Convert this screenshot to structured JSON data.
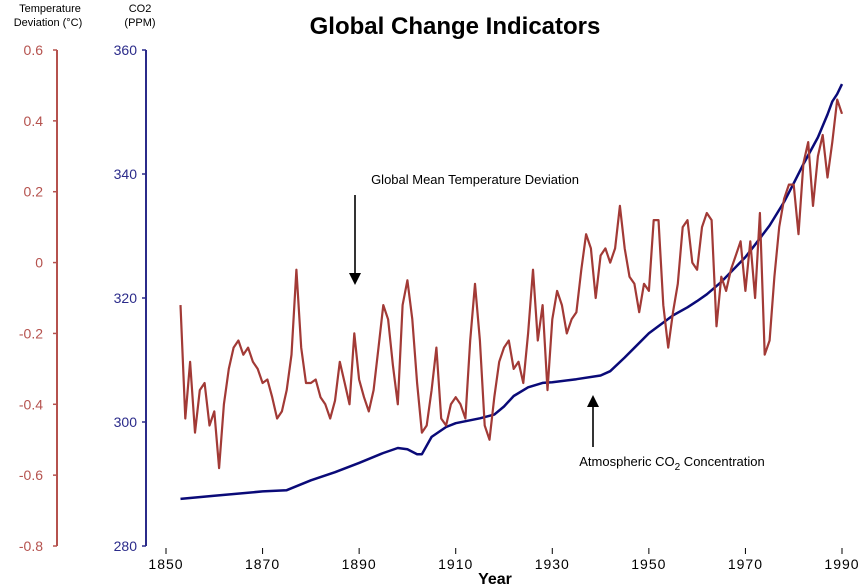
{
  "chart_data": {
    "type": "line",
    "title": "Global Change Indicators",
    "xlabel": "Year",
    "x_ticks": [
      "1850",
      "1870",
      "1890",
      "1910",
      "1930",
      "1950",
      "1970",
      "1990"
    ],
    "xlim": [
      1850,
      1990
    ],
    "axes": {
      "temperature": {
        "label_line1": "Temperature",
        "label_line2": "Deviation (°C)",
        "ticks": [
          "0.6",
          "0.4",
          "0.2",
          "0",
          "-0.2",
          "-0.4",
          "-0.6",
          "-0.8"
        ],
        "ylim": [
          -0.8,
          0.6
        ],
        "color": "#b5524e"
      },
      "co2": {
        "label_line1": "CO2",
        "label_line2": "(PPM)",
        "ticks": [
          "360",
          "340",
          "320",
          "300",
          "280"
        ],
        "ylim": [
          280,
          360
        ],
        "color": "#2b2b8a"
      }
    },
    "series": [
      {
        "axis": "temperature",
        "color": "#a23a36",
        "x": [
          1853,
          1854,
          1855,
          1856,
          1857,
          1858,
          1859,
          1860,
          1861,
          1862,
          1863,
          1864,
          1865,
          1866,
          1867,
          1868,
          1869,
          1870,
          1871,
          1872,
          1873,
          1874,
          1875,
          1876,
          1877,
          1878,
          1879,
          1880,
          1881,
          1882,
          1883,
          1884,
          1885,
          1886,
          1887,
          1888,
          1889,
          1890,
          1891,
          1892,
          1893,
          1894,
          1895,
          1896,
          1897,
          1898,
          1899,
          1900,
          1901,
          1902,
          1903,
          1904,
          1905,
          1906,
          1907,
          1908,
          1909,
          1910,
          1911,
          1912,
          1913,
          1914,
          1915,
          1916,
          1917,
          1918,
          1919,
          1920,
          1921,
          1922,
          1923,
          1924,
          1925,
          1926,
          1927,
          1928,
          1929,
          1930,
          1931,
          1932,
          1933,
          1934,
          1935,
          1936,
          1937,
          1938,
          1939,
          1940,
          1941,
          1942,
          1943,
          1944,
          1945,
          1946,
          1947,
          1948,
          1949,
          1950,
          1951,
          1952,
          1953,
          1954,
          1955,
          1956,
          1957,
          1958,
          1959,
          1960,
          1961,
          1962,
          1963,
          1964,
          1965,
          1966,
          1967,
          1968,
          1969,
          1970,
          1971,
          1972,
          1973,
          1974,
          1975,
          1976,
          1977,
          1978,
          1979,
          1980,
          1981,
          1982,
          1983,
          1984,
          1985,
          1986,
          1987,
          1988,
          1989,
          1990
        ],
        "values": [
          -0.12,
          -0.44,
          -0.28,
          -0.48,
          -0.36,
          -0.34,
          -0.46,
          -0.42,
          -0.58,
          -0.4,
          -0.3,
          -0.24,
          -0.22,
          -0.26,
          -0.24,
          -0.28,
          -0.3,
          -0.34,
          -0.33,
          -0.38,
          -0.44,
          -0.42,
          -0.36,
          -0.26,
          -0.02,
          -0.24,
          -0.34,
          -0.34,
          -0.33,
          -0.38,
          -0.4,
          -0.44,
          -0.39,
          -0.28,
          -0.34,
          -0.4,
          -0.2,
          -0.33,
          -0.38,
          -0.42,
          -0.36,
          -0.24,
          -0.12,
          -0.16,
          -0.29,
          -0.4,
          -0.12,
          -0.05,
          -0.16,
          -0.34,
          -0.48,
          -0.46,
          -0.36,
          -0.24,
          -0.44,
          -0.46,
          -0.4,
          -0.38,
          -0.4,
          -0.44,
          -0.22,
          -0.06,
          -0.22,
          -0.46,
          -0.5,
          -0.38,
          -0.28,
          -0.24,
          -0.22,
          -0.3,
          -0.28,
          -0.34,
          -0.2,
          -0.02,
          -0.22,
          -0.12,
          -0.36,
          -0.16,
          -0.08,
          -0.12,
          -0.2,
          -0.16,
          -0.14,
          -0.02,
          0.08,
          0.04,
          -0.1,
          0.02,
          0.04,
          0.0,
          0.04,
          0.16,
          0.04,
          -0.04,
          -0.06,
          -0.14,
          -0.06,
          -0.08,
          0.12,
          0.12,
          -0.12,
          -0.24,
          -0.14,
          -0.06,
          0.1,
          0.12,
          0.0,
          -0.02,
          0.1,
          0.14,
          0.12,
          -0.18,
          -0.04,
          -0.08,
          -0.02,
          0.02,
          0.06,
          -0.08,
          0.06,
          -0.1,
          0.14,
          -0.26,
          -0.22,
          -0.04,
          0.1,
          0.18,
          0.22,
          0.22,
          0.08,
          0.28,
          0.34,
          0.16,
          0.3,
          0.36,
          0.24,
          0.34,
          0.46,
          0.42
        ],
        "note": "Temperature deviation series, read approximately from the image"
      },
      {
        "axis": "co2",
        "color": "#0a0a78",
        "x": [
          1853,
          1860,
          1870,
          1875,
          1880,
          1885,
          1890,
          1895,
          1898,
          1900,
          1902,
          1903,
          1905,
          1908,
          1910,
          1915,
          1918,
          1920,
          1922,
          1925,
          1928,
          1930,
          1935,
          1940,
          1942,
          1945,
          1950,
          1955,
          1958,
          1960,
          1962,
          1965,
          1968,
          1970,
          1972,
          1975,
          1978,
          1980,
          1982,
          1985,
          1987,
          1988,
          1989,
          1990
        ],
        "values": [
          287.6,
          288.1,
          288.8,
          289.0,
          290.6,
          291.9,
          293.4,
          295.0,
          295.8,
          295.6,
          294.8,
          294.8,
          297.6,
          299.2,
          299.8,
          300.6,
          301.2,
          302.5,
          304.2,
          305.6,
          306.3,
          306.4,
          306.9,
          307.5,
          308.2,
          310.4,
          314.3,
          317.2,
          318.5,
          319.5,
          320.6,
          322.6,
          325.0,
          326.6,
          328.6,
          331.7,
          335.5,
          338.5,
          341.6,
          345.9,
          349.6,
          351.7,
          352.9,
          354.5
        ],
        "note": "CO2 series, read approximately from the image"
      }
    ],
    "annotations": [
      {
        "label": "Global Mean Temperature Deviation",
        "points_to": "temperature"
      },
      {
        "label_pre": "Atmospheric CO",
        "label_sub": "2",
        "label_post": " Concentration",
        "points_to": "co2"
      }
    ]
  }
}
